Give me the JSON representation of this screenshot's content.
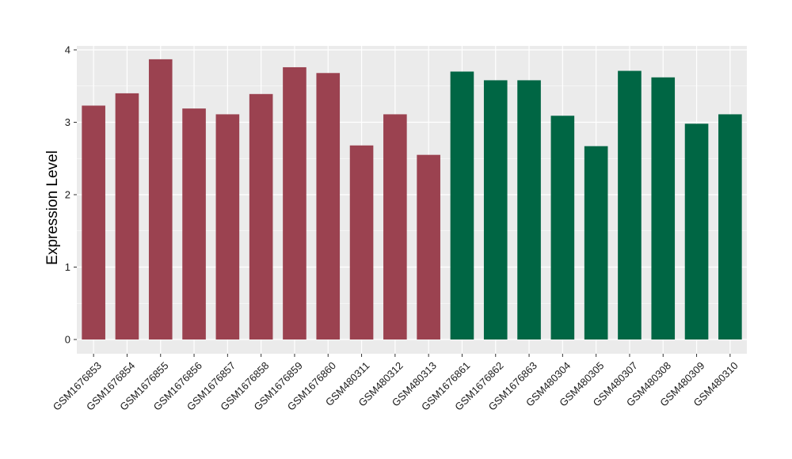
{
  "chart_data": {
    "type": "bar",
    "title": "",
    "xlabel": "",
    "ylabel": "Expression Level",
    "ylim": [
      0,
      4.0
    ],
    "yticks": [
      0,
      1,
      2,
      3,
      4
    ],
    "grid": true,
    "legend": "none",
    "panel_background": "#EBEBEB",
    "grid_color": "#FFFFFF",
    "categories": [
      "GSM1676853",
      "GSM1676854",
      "GSM1676855",
      "GSM1676856",
      "GSM1676857",
      "GSM1676858",
      "GSM1676859",
      "GSM1676860",
      "GSM480311",
      "GSM480312",
      "GSM480313",
      "GSM1676861",
      "GSM1676862",
      "GSM1676863",
      "GSM480304",
      "GSM480305",
      "GSM480307",
      "GSM480308",
      "GSM480309",
      "GSM480310"
    ],
    "values": [
      3.23,
      3.4,
      3.87,
      3.19,
      3.11,
      3.39,
      3.76,
      3.68,
      2.68,
      3.11,
      2.55,
      3.7,
      3.58,
      3.58,
      3.09,
      2.67,
      3.71,
      3.62,
      2.98,
      3.11
    ],
    "bar_colors": [
      "#9B4250",
      "#9B4250",
      "#9B4250",
      "#9B4250",
      "#9B4250",
      "#9B4250",
      "#9B4250",
      "#9B4250",
      "#9B4250",
      "#9B4250",
      "#9B4250",
      "#006644",
      "#006644",
      "#006644",
      "#006644",
      "#006644",
      "#006644",
      "#006644",
      "#006644",
      "#006644"
    ]
  }
}
